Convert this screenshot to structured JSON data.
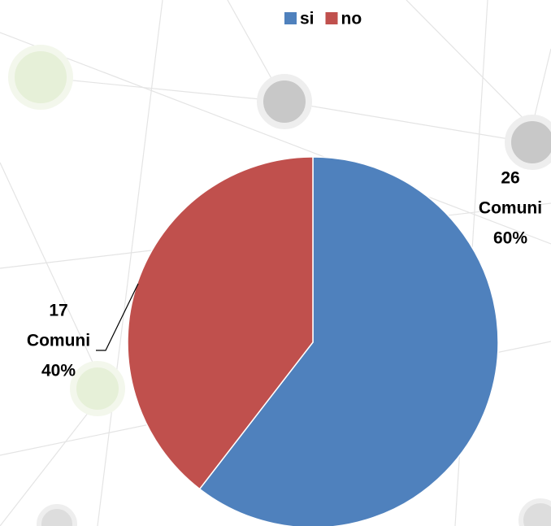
{
  "chart_data": {
    "type": "pie",
    "categories": [
      "si",
      "no"
    ],
    "values": [
      26,
      17
    ],
    "value_labels": [
      [
        "26",
        "Comuni",
        "60%"
      ],
      [
        "17",
        "Comuni",
        "40%"
      ]
    ],
    "colors": [
      "#4f81bd",
      "#c0504d"
    ],
    "legend": "top"
  }
}
